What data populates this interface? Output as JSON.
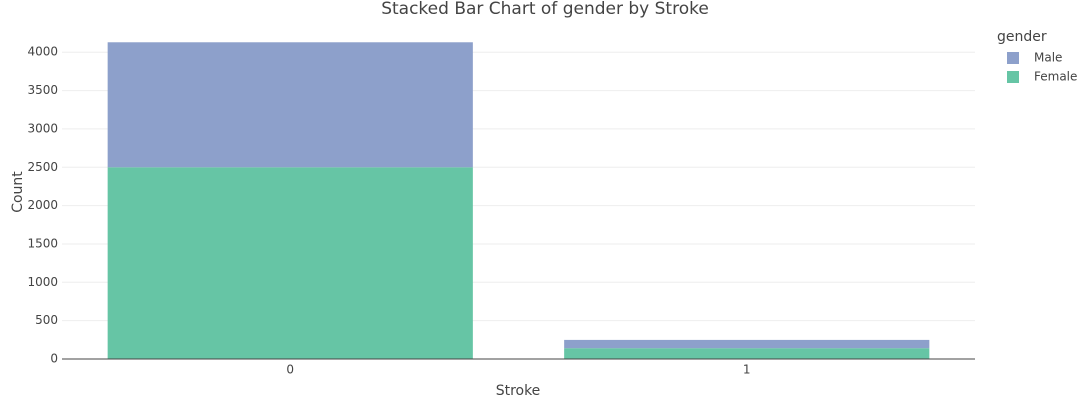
{
  "chart_data": {
    "type": "stacked_bar",
    "title": "Stacked Bar Chart of gender by Stroke",
    "x_label": "Stroke",
    "y_label": "Count",
    "categories": [
      "0",
      "1"
    ],
    "series": [
      {
        "name": "Female",
        "color": "#66c5a5",
        "values": [
          2500,
          141
        ]
      },
      {
        "name": "Male",
        "color": "#8da0cb",
        "values": [
          1630,
          108
        ]
      }
    ],
    "legend_title": "gender",
    "ylim": [
      0,
      4290
    ],
    "yticks": [
      0,
      500,
      1000,
      1500,
      2000,
      2500,
      3000,
      3500,
      4000
    ],
    "grid": true,
    "legend": "right"
  }
}
